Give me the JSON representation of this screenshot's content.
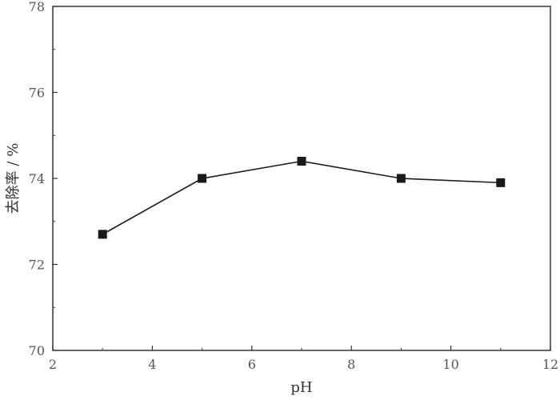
{
  "chart_data": {
    "type": "line",
    "xlabel": "pH",
    "ylabel": "去除率 / %",
    "xlim": [
      2,
      12
    ],
    "ylim": [
      70,
      78
    ],
    "xticks": [
      "2",
      "4",
      "6",
      "8",
      "10",
      "12"
    ],
    "yticks": [
      "70",
      "72",
      "74",
      "76",
      "78"
    ],
    "series": [
      {
        "marker": "square",
        "color": "#1a1a1a",
        "points": [
          {
            "x": 3,
            "y": 72.7
          },
          {
            "x": 5,
            "y": 74.0
          },
          {
            "x": 7,
            "y": 74.4
          },
          {
            "x": 9,
            "y": 74.0
          },
          {
            "x": 11,
            "y": 73.9
          }
        ]
      }
    ],
    "grid": false,
    "legend": "none"
  }
}
